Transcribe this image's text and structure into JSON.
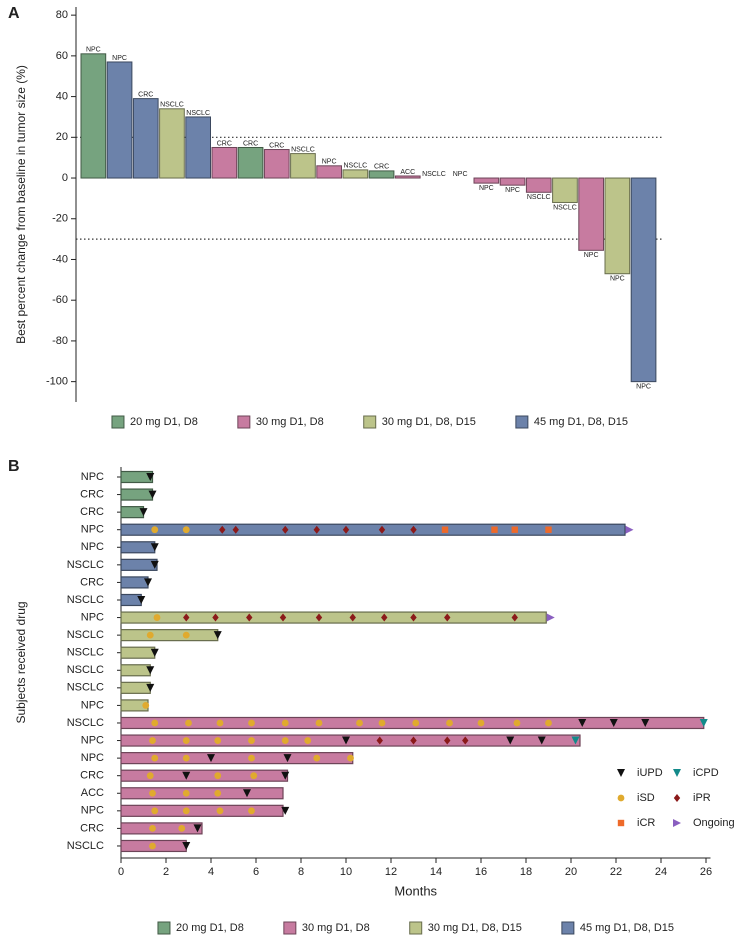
{
  "chart_data": [
    {
      "type": "bar",
      "panel_label": "A",
      "ylabel": "Best percent change from baseline in tumor size (%)",
      "categories": [
        "NPC",
        "NPC",
        "CRC",
        "NSCLC",
        "NSCLC",
        "CRC",
        "CRC",
        "CRC",
        "NSCLC",
        "NPC",
        "NSCLC",
        "CRC",
        "ACC",
        "NSCLC",
        "NPC",
        "NPC",
        "NPC",
        "NSCLC",
        "NSCLC",
        "NPC",
        "NPC",
        "NPC"
      ],
      "series": [
        {
          "name": "20 mg D1, D8",
          "color": "#76a37f",
          "values": [
            61,
            null,
            null,
            null,
            null,
            null,
            15,
            null,
            null,
            null,
            null,
            3.5,
            null,
            null,
            null,
            null,
            null,
            null,
            null,
            null,
            null,
            null
          ]
        },
        {
          "name": "30 mg D1, D8",
          "color": "#c77ba0",
          "values": [
            null,
            null,
            null,
            null,
            null,
            15,
            null,
            14,
            null,
            6,
            null,
            null,
            1,
            null,
            0,
            -2.5,
            -3.5,
            -7,
            null,
            -35.5,
            null,
            null
          ]
        },
        {
          "name": "30 mg D1, D8, D15",
          "color": "#bcc48a",
          "values": [
            null,
            null,
            null,
            34,
            null,
            null,
            null,
            null,
            12,
            null,
            4,
            null,
            null,
            0,
            null,
            null,
            null,
            null,
            -12,
            null,
            -47,
            null
          ]
        },
        {
          "name": "45 mg D1, D8, D15",
          "color": "#6c82aa",
          "values": [
            null,
            57,
            39,
            null,
            30,
            null,
            null,
            null,
            null,
            null,
            null,
            null,
            null,
            null,
            null,
            null,
            null,
            null,
            null,
            null,
            null,
            -100
          ]
        }
      ],
      "reference_lines": [
        20,
        -30
      ],
      "ylim": [
        -110,
        84
      ],
      "yticks": [
        -100,
        -80,
        -60,
        -40,
        -20,
        0,
        20,
        40,
        60,
        80
      ]
    },
    {
      "type": "swimmer",
      "panel_label": "B",
      "xlabel": "Months",
      "ylabel": "Subjects received drug",
      "categories": [
        "NPC",
        "CRC",
        "CRC",
        "NPC",
        "NPC",
        "NSCLC",
        "CRC",
        "NSCLC",
        "NPC",
        "NSCLC",
        "NSCLC",
        "NSCLC",
        "NSCLC",
        "NPC",
        "NSCLC",
        "NPC",
        "NPC",
        "CRC",
        "ACC",
        "NPC",
        "CRC",
        "NSCLC"
      ],
      "series": [
        {
          "name": "20 mg D1, D8",
          "color": "#76a37f",
          "values": [
            1.4,
            1.4,
            1.0,
            null,
            null,
            null,
            null,
            null,
            null,
            null,
            null,
            null,
            null,
            null,
            null,
            null,
            null,
            null,
            null,
            null,
            null,
            null
          ]
        },
        {
          "name": "30 mg D1, D8",
          "color": "#c77ba0",
          "values": [
            null,
            null,
            null,
            null,
            null,
            null,
            null,
            null,
            null,
            null,
            null,
            null,
            null,
            null,
            25.9,
            20.4,
            10.3,
            7.4,
            7.2,
            7.2,
            3.6,
            2.9
          ]
        },
        {
          "name": "30 mg D1, D8, D15",
          "color": "#bcc48a",
          "values": [
            null,
            null,
            null,
            null,
            null,
            null,
            null,
            null,
            18.9,
            4.3,
            1.5,
            1.3,
            1.3,
            1.2,
            null,
            null,
            null,
            null,
            null,
            null,
            null,
            null
          ]
        },
        {
          "name": "45 mg D1, D8, D15",
          "color": "#6c82aa",
          "values": [
            null,
            null,
            null,
            22.4,
            1.5,
            1.6,
            1.2,
            0.9,
            null,
            null,
            null,
            null,
            null,
            null,
            null,
            null,
            null,
            null,
            null,
            null,
            null,
            null
          ]
        }
      ],
      "events": [
        {
          "name": "iUPD",
          "color": "#111111",
          "marker": "triangle-down",
          "values": [
            [
              1.3
            ],
            [
              1.4
            ],
            [
              1.0
            ],
            [],
            [
              1.5
            ],
            [
              1.5
            ],
            [
              1.2
            ],
            [
              0.9
            ],
            [],
            [
              4.3
            ],
            [
              1.5
            ],
            [
              1.3
            ],
            [
              1.3
            ],
            [],
            [
              20.5,
              21.9,
              23.3
            ],
            [
              10.0,
              17.3,
              18.7
            ],
            [
              4.0,
              7.4
            ],
            [
              2.9,
              7.3
            ],
            [
              5.6
            ],
            [
              7.3
            ],
            [
              3.4
            ],
            [
              2.9
            ]
          ]
        },
        {
          "name": "iCPD",
          "color": "#138a8a",
          "marker": "triangle-down",
          "values": [
            [],
            [],
            [],
            [],
            [],
            [],
            [],
            [],
            [],
            [],
            [],
            [],
            [],
            [],
            [
              25.9
            ],
            [
              20.2
            ],
            [],
            [],
            [],
            [],
            [],
            []
          ]
        },
        {
          "name": "iSD",
          "color": "#e0aa2e",
          "marker": "circle",
          "values": [
            [],
            [],
            [],
            [
              1.5,
              2.9
            ],
            [],
            [],
            [],
            [],
            [
              1.6
            ],
            [
              1.3,
              2.9
            ],
            [],
            [],
            [],
            [
              1.1
            ],
            [
              1.5,
              3.0,
              4.4,
              5.8,
              7.3,
              8.8,
              10.6,
              11.6,
              13.1,
              14.6,
              16.0,
              17.6,
              19.0
            ],
            [
              1.4,
              2.9,
              4.3,
              5.8,
              7.3,
              8.3
            ],
            [
              1.5,
              2.9,
              5.8,
              8.7,
              10.2
            ],
            [
              1.3,
              4.3,
              5.9
            ],
            [
              1.4,
              2.9,
              4.3
            ],
            [
              1.5,
              2.9,
              4.4,
              5.8
            ],
            [
              1.4,
              2.7
            ],
            [
              1.4
            ]
          ]
        },
        {
          "name": "iPR",
          "color": "#8b1a1a",
          "marker": "diamond",
          "values": [
            [],
            [],
            [],
            [
              4.5,
              5.1,
              7.3,
              8.7,
              10.0,
              11.6,
              13.0
            ],
            [],
            [],
            [],
            [],
            [
              2.9,
              4.2,
              5.7,
              7.2,
              8.8,
              10.3,
              11.7,
              13.0,
              14.5,
              17.5
            ],
            [],
            [],
            [],
            [],
            [],
            [],
            [
              11.5,
              13.0,
              14.5,
              15.3
            ],
            [],
            [],
            [],
            [],
            [],
            []
          ]
        },
        {
          "name": "iCR",
          "color": "#ee6a2a",
          "marker": "square",
          "values": [
            [],
            [],
            [],
            [
              14.4,
              16.6,
              17.5,
              19.0
            ],
            [],
            [],
            [],
            [],
            [],
            [],
            [],
            [],
            [],
            [],
            [],
            [],
            [],
            [],
            [],
            [],
            [],
            []
          ]
        },
        {
          "name": "Ongoing",
          "color": "#8a5fc0",
          "marker": "triangle-right",
          "values": [
            [],
            [],
            [],
            [
              22.6
            ],
            [],
            [],
            [],
            [],
            [
              19.1
            ],
            [],
            [],
            [],
            [],
            [],
            [],
            [],
            [],
            [],
            [],
            [],
            [],
            []
          ]
        }
      ],
      "xlim": [
        0,
        26.2
      ],
      "xticks": [
        0,
        2,
        4,
        6,
        8,
        10,
        12,
        14,
        16,
        18,
        20,
        22,
        24,
        26
      ]
    }
  ]
}
